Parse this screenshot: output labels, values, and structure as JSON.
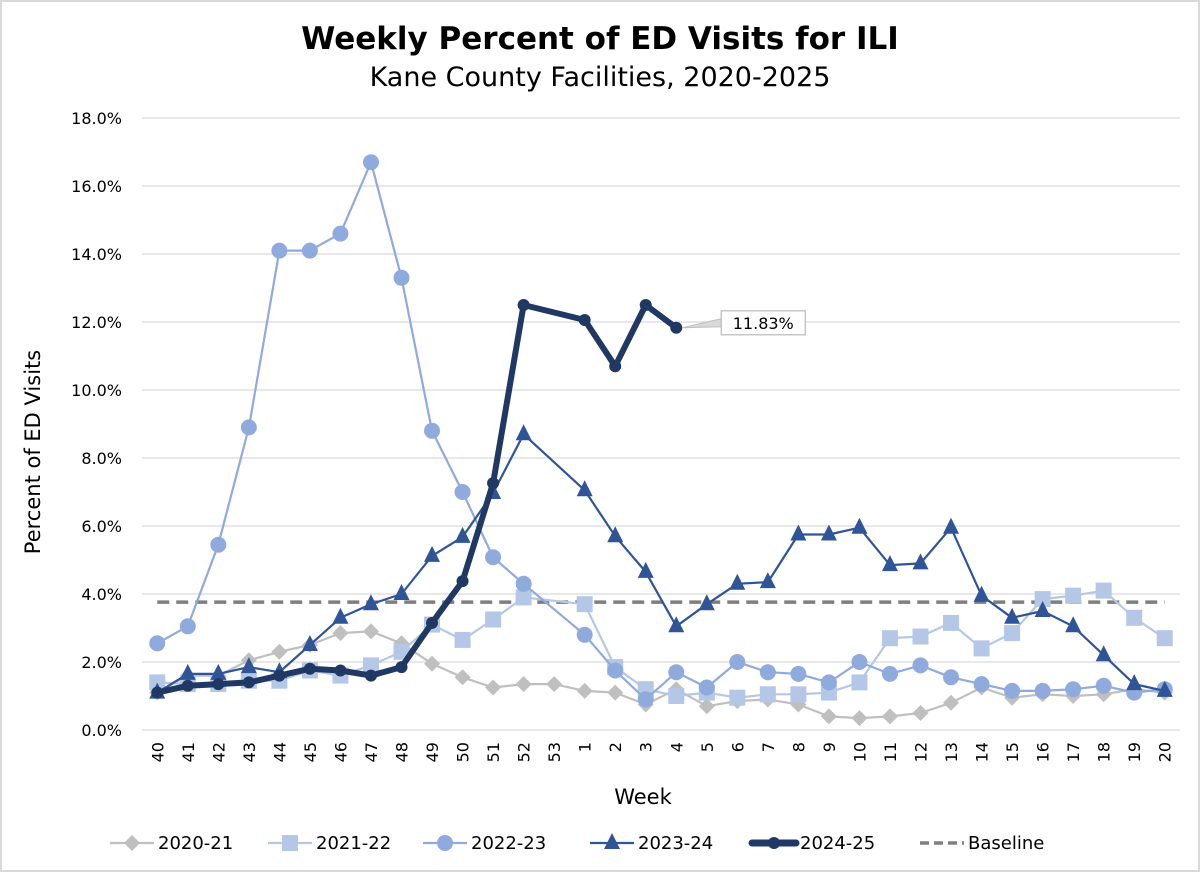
{
  "chart_data": {
    "type": "line",
    "title": "Weekly Percent of ED Visits for ILI",
    "subtitle": "Kane County Facilities, 2020-2025",
    "xlabel": "Week",
    "ylabel": "Percent of ED Visits",
    "ylim": [
      0,
      18
    ],
    "yticks": [
      "0.0%",
      "2.0%",
      "4.0%",
      "6.0%",
      "8.0%",
      "10.0%",
      "12.0%",
      "14.0%",
      "16.0%",
      "18.0%"
    ],
    "ytick_values": [
      0,
      2,
      4,
      6,
      8,
      10,
      12,
      14,
      16,
      18
    ],
    "grid": true,
    "legend_position": "bottom",
    "categories": [
      "40",
      "41",
      "42",
      "43",
      "44",
      "45",
      "46",
      "47",
      "48",
      "49",
      "50",
      "51",
      "52",
      "53",
      "1",
      "2",
      "3",
      "4",
      "5",
      "6",
      "7",
      "8",
      "9",
      "10",
      "11",
      "12",
      "13",
      "14",
      "15",
      "16",
      "17",
      "18",
      "19",
      "20"
    ],
    "series": [
      {
        "name": "2020-21",
        "color": "#bfbfbf",
        "marker": "diamond",
        "values": [
          1.1,
          1.6,
          1.6,
          2.05,
          2.3,
          2.5,
          2.85,
          2.9,
          2.55,
          1.95,
          1.55,
          1.25,
          1.35,
          1.35,
          1.15,
          1.1,
          0.75,
          1.2,
          0.7,
          0.85,
          0.9,
          0.75,
          0.4,
          0.35,
          0.4,
          0.5,
          0.8,
          1.25,
          0.95,
          1.05,
          1.0,
          1.05,
          1.2,
          1.1
        ]
      },
      {
        "name": "2021-22",
        "color": "#b4c7e7",
        "marker": "square",
        "values": [
          1.4,
          1.35,
          1.35,
          1.45,
          1.45,
          1.75,
          1.6,
          1.9,
          2.3,
          3.1,
          2.65,
          3.25,
          3.9,
          null,
          3.7,
          1.85,
          1.2,
          1.0,
          1.1,
          0.95,
          1.05,
          1.05,
          1.1,
          1.4,
          2.7,
          2.75,
          3.15,
          2.4,
          2.85,
          3.85,
          3.95,
          4.1,
          3.3,
          2.7
        ]
      },
      {
        "name": "2022-23",
        "color": "#8faadc",
        "marker": "circle",
        "values": [
          2.55,
          3.05,
          5.45,
          8.9,
          14.1,
          14.1,
          14.6,
          16.7,
          13.3,
          8.8,
          7.0,
          5.08,
          4.3,
          null,
          2.8,
          1.75,
          0.9,
          1.7,
          1.25,
          2.0,
          1.7,
          1.65,
          1.4,
          2.0,
          1.65,
          1.9,
          1.55,
          1.35,
          1.15,
          1.15,
          1.2,
          1.3,
          1.1,
          1.2
        ]
      },
      {
        "name": "2023-24",
        "color": "#2f5597",
        "marker": "triangle",
        "values": [
          1.1,
          1.65,
          1.65,
          1.85,
          1.7,
          2.5,
          3.3,
          3.7,
          4.0,
          5.12,
          5.68,
          6.97,
          8.7,
          null,
          7.05,
          5.7,
          4.65,
          3.05,
          3.7,
          4.3,
          4.35,
          5.75,
          5.75,
          5.95,
          4.85,
          4.9,
          5.95,
          3.95,
          3.3,
          3.5,
          3.05,
          2.2,
          1.35,
          1.15
        ]
      },
      {
        "name": "2024-25",
        "color": "#203864",
        "marker": "circle-small",
        "values": [
          1.1,
          1.3,
          1.35,
          1.4,
          1.6,
          1.8,
          1.75,
          1.6,
          1.85,
          3.15,
          4.38,
          7.26,
          12.5,
          null,
          12.06,
          10.7,
          12.5,
          11.83,
          null,
          null,
          null,
          null,
          null,
          null,
          null,
          null,
          null,
          null,
          null,
          null,
          null,
          null,
          null,
          null
        ]
      },
      {
        "name": "Baseline",
        "color": "#7f7f7f",
        "marker": "none",
        "dashed": true,
        "values": [
          3.76,
          3.76,
          3.76,
          3.76,
          3.76,
          3.76,
          3.76,
          3.76,
          3.76,
          3.76,
          3.76,
          3.76,
          3.76,
          3.76,
          3.76,
          3.76,
          3.76,
          3.76,
          3.76,
          3.76,
          3.76,
          3.76,
          3.76,
          3.76,
          3.76,
          3.76,
          3.76,
          3.76,
          3.76,
          3.76,
          3.76,
          3.76,
          3.76,
          3.76
        ]
      }
    ],
    "annotations": [
      {
        "series": "2024-25",
        "category": "4",
        "text": "11.83%"
      }
    ]
  }
}
